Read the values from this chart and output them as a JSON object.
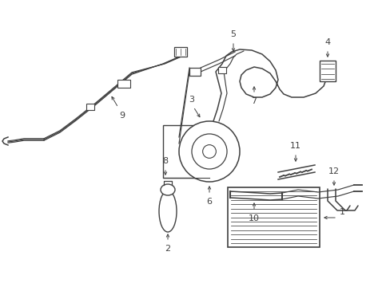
{
  "bg_color": "#ffffff",
  "line_color": "#404040",
  "label_color": "#111111",
  "figsize": [
    4.89,
    3.6
  ],
  "dpi": 100
}
